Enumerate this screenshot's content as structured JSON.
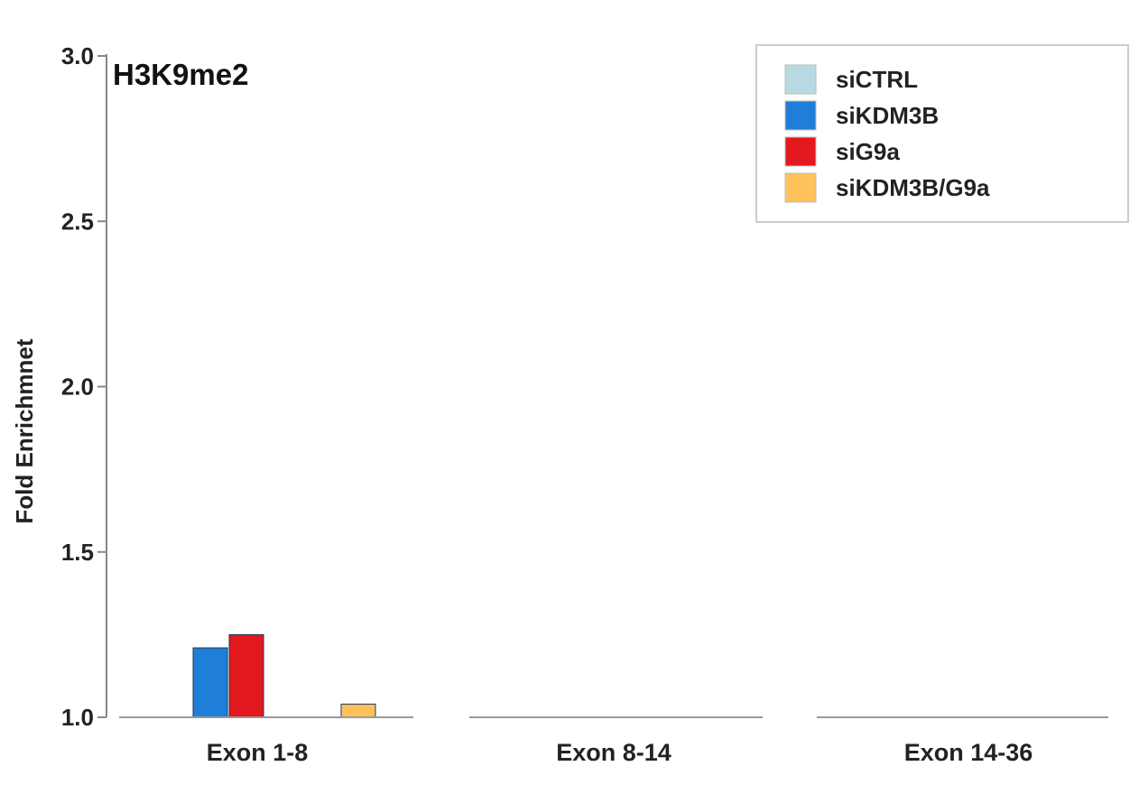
{
  "chart_data": {
    "type": "bar",
    "title": "H3K9me2",
    "xlabel": "",
    "ylabel": "Fold Enrichmnet",
    "ylim": [
      1.0,
      3.0
    ],
    "yticks": [
      "1.0",
      "1.5",
      "2.0",
      "2.5",
      "3.0"
    ],
    "categories": [
      "Exon 1-8",
      "Exon 8-14",
      "Exon 14-36"
    ],
    "series": [
      {
        "name": "siCTRL",
        "color": "#b7dbe3",
        "values": [
          1.0,
          1.0,
          1.0
        ]
      },
      {
        "name": "siKDM3B",
        "color": "#1f7fd8",
        "values": [
          1.21,
          1.0,
          1.0
        ]
      },
      {
        "name": "siG9a",
        "color": "#e3191f",
        "values": [
          1.25,
          1.0,
          1.0
        ]
      },
      {
        "name": "siKDM3B/G9a",
        "color": "#ffc15c",
        "values": [
          1.0,
          1.0,
          1.0
        ]
      },
      {
        "name": "",
        "color": "#ffc15c",
        "values": [
          1.04,
          1.0,
          1.0
        ]
      }
    ],
    "legend_series": [
      "siCTRL",
      "siKDM3B",
      "siG9a",
      "siKDM3B/G9a"
    ],
    "legend_position": "top-right",
    "grid": false
  }
}
